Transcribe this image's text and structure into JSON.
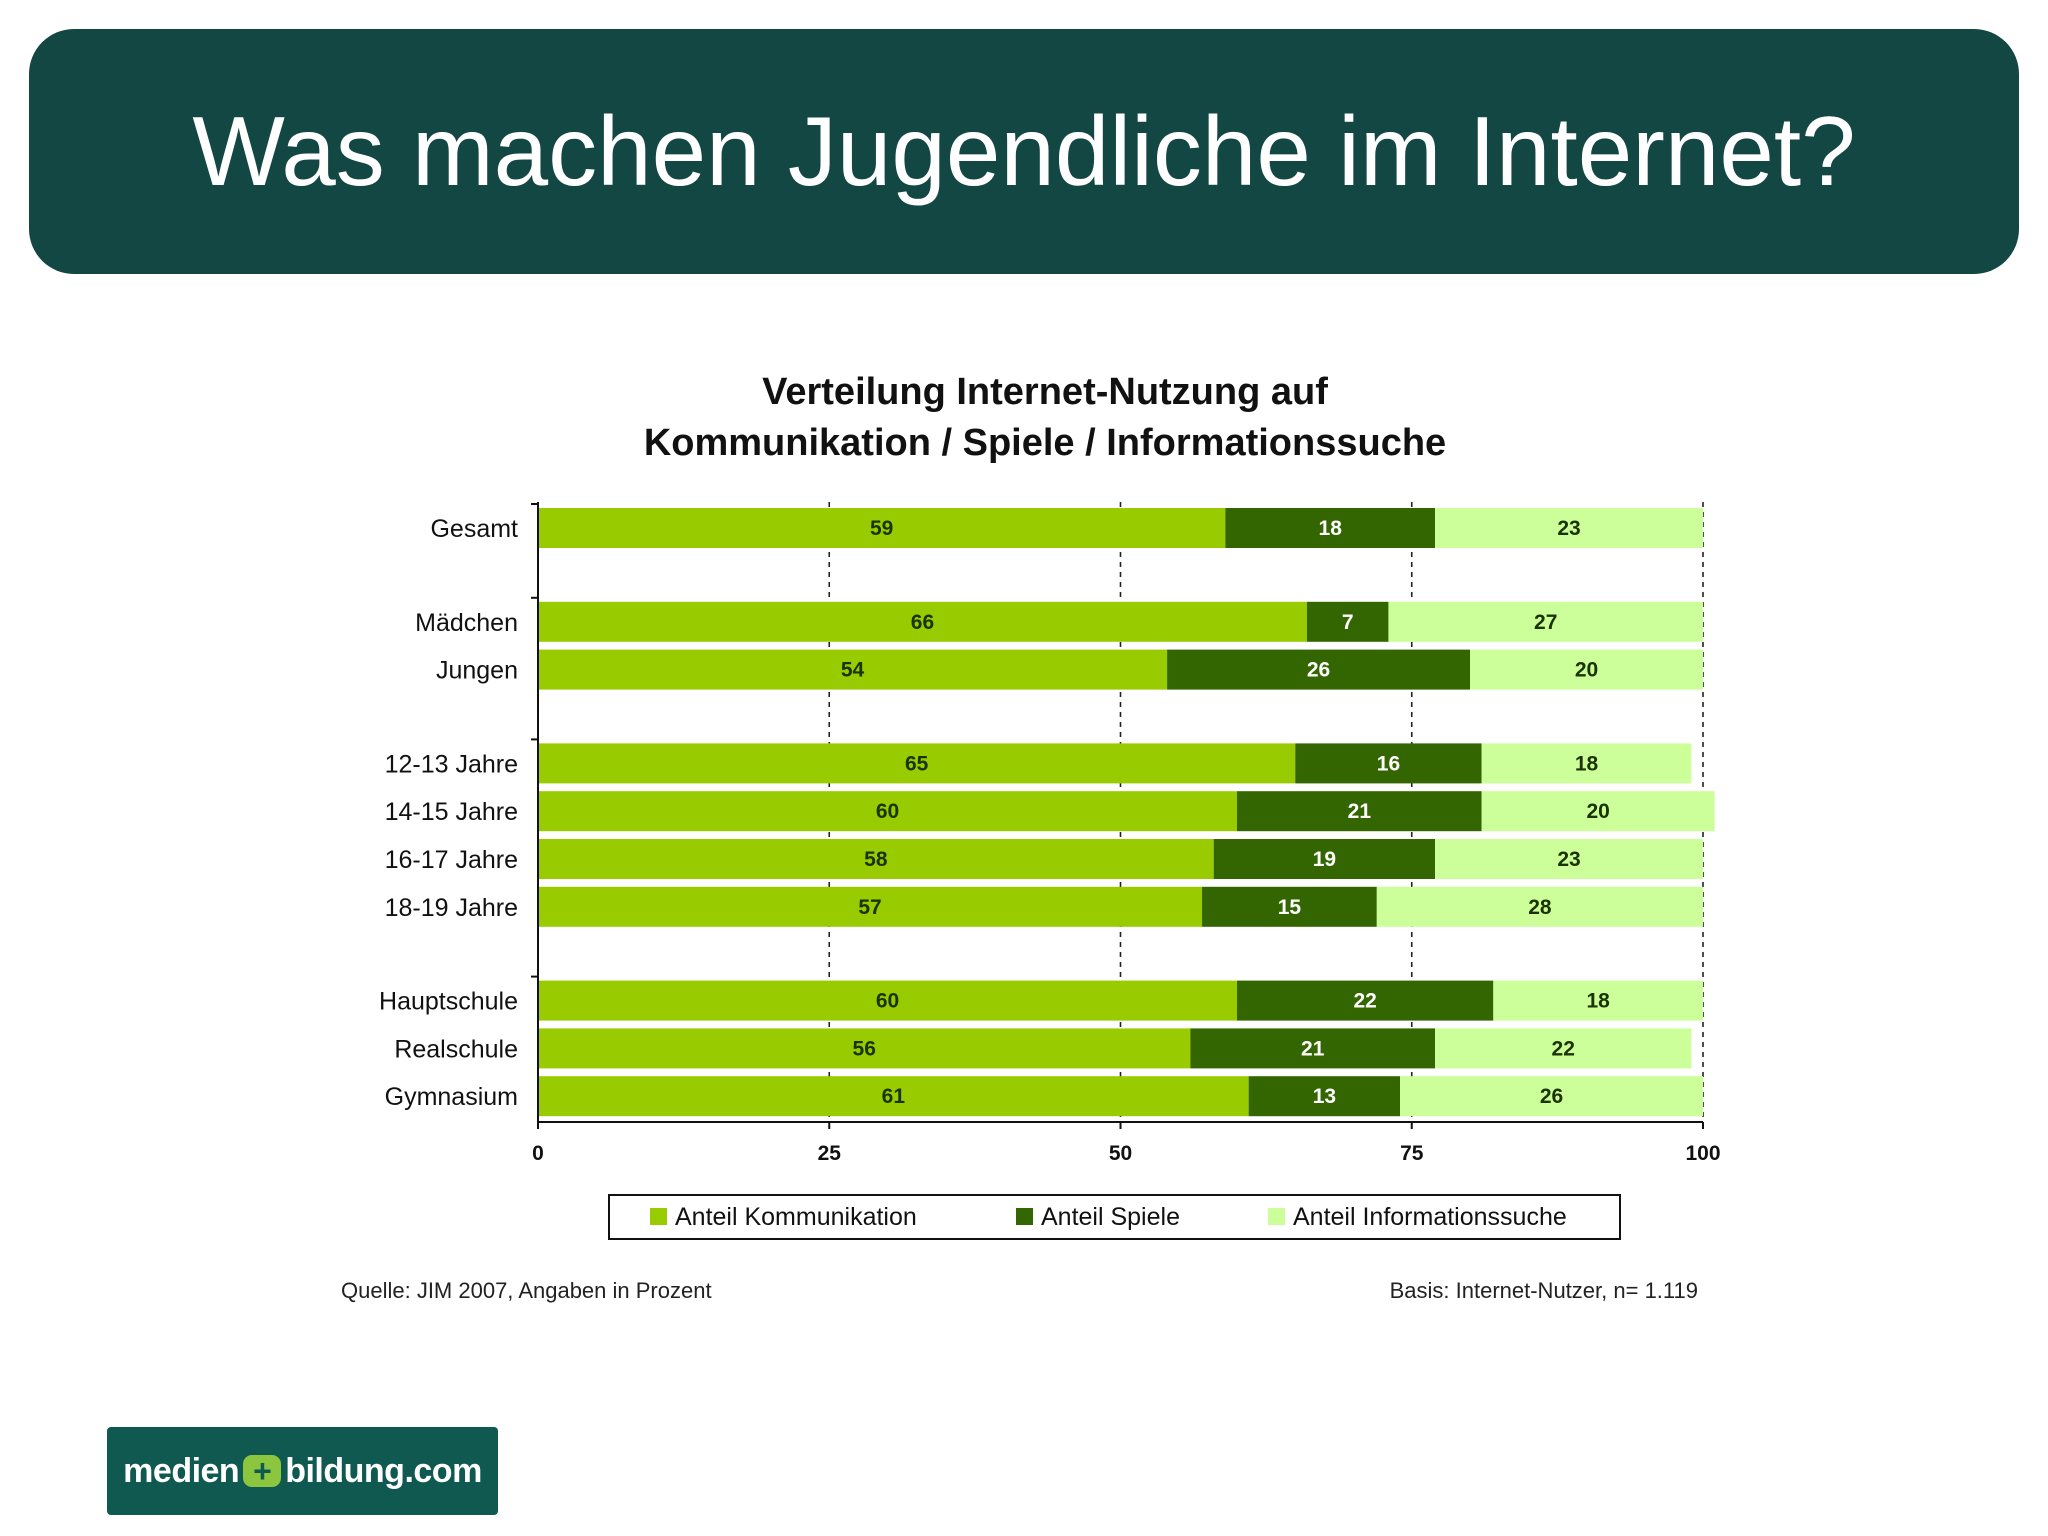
{
  "slide": {
    "title": "Was machen Jugendliche im Internet?"
  },
  "chart_data": {
    "type": "bar",
    "orientation": "horizontal",
    "stacked": true,
    "title_lines": [
      "Verteilung Internet-Nutzung auf",
      "Kommunikation / Spiele / Informationssuche"
    ],
    "categories": [
      "Gesamt",
      "Mädchen",
      "Jungen",
      "12-13 Jahre",
      "14-15 Jahre",
      "16-17 Jahre",
      "18-19 Jahre",
      "Hauptschule",
      "Realschule",
      "Gymnasium"
    ],
    "groups": [
      [
        0
      ],
      [
        1,
        2
      ],
      [
        3,
        4,
        5,
        6
      ],
      [
        7,
        8,
        9
      ]
    ],
    "series": [
      {
        "name": "Anteil Kommunikation",
        "color": "#99cc00",
        "label_color": "#1a3300",
        "values": [
          59,
          66,
          54,
          65,
          60,
          58,
          57,
          60,
          56,
          61
        ]
      },
      {
        "name": "Anteil Spiele",
        "color": "#336600",
        "label_color": "#ffffff",
        "values": [
          18,
          7,
          26,
          16,
          21,
          19,
          15,
          22,
          21,
          13
        ]
      },
      {
        "name": "Anteil Informationssuche",
        "color": "#ccff99",
        "label_color": "#1a3300",
        "values": [
          23,
          27,
          20,
          18,
          20,
          23,
          28,
          18,
          22,
          26
        ]
      }
    ],
    "xlim": [
      0,
      100
    ],
    "xticks": [
      0,
      25,
      50,
      75,
      100
    ],
    "grid": "dashed-vertical",
    "legend": "bottom"
  },
  "footnotes": {
    "source": "Quelle: JIM 2007, Angaben in Prozent",
    "basis": "Basis: Internet-Nutzer, n= 1.119"
  },
  "logo": {
    "left": "medien",
    "plus": "+",
    "right": "bildung.com"
  }
}
